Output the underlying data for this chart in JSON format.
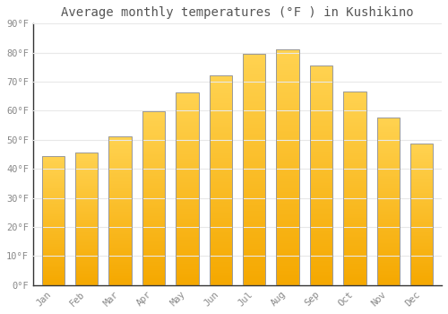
{
  "title": "Average monthly temperatures (°F ) in Kushikino",
  "months": [
    "Jan",
    "Feb",
    "Mar",
    "Apr",
    "May",
    "Jun",
    "Jul",
    "Aug",
    "Sep",
    "Oct",
    "Nov",
    "Dec"
  ],
  "values": [
    44.5,
    45.7,
    51.3,
    59.9,
    66.4,
    72.3,
    79.5,
    81.0,
    75.7,
    66.6,
    57.6,
    48.7
  ],
  "bar_color_bottom": "#F5A800",
  "bar_color_top": "#FFD060",
  "bar_edge_color": "#B8860B",
  "background_color": "#FFFFFF",
  "grid_color": "#E8E8E8",
  "text_color": "#888888",
  "title_color": "#555555",
  "ylim": [
    0,
    90
  ],
  "yticks": [
    0,
    10,
    20,
    30,
    40,
    50,
    60,
    70,
    80,
    90
  ],
  "ytick_labels": [
    "0°F",
    "10°F",
    "20°F",
    "30°F",
    "40°F",
    "50°F",
    "60°F",
    "70°F",
    "80°F",
    "90°F"
  ],
  "title_fontsize": 10,
  "tick_fontsize": 7.5,
  "bar_width": 0.68,
  "n_gradient_steps": 200
}
